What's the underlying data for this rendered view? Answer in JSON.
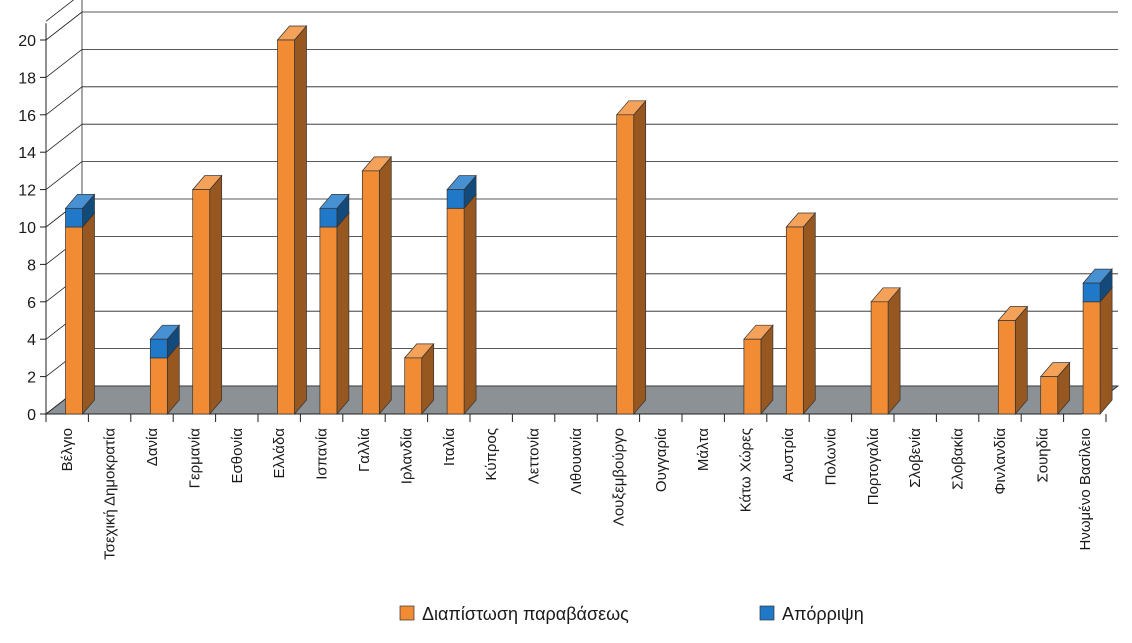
{
  "chart_data": {
    "type": "bar",
    "stacked": true,
    "three_d": true,
    "categories": [
      "Βέλγιο",
      "Τσεχική Δημοκρατία",
      "Δανία",
      "Γερμανία",
      "Εσθονία",
      "Ελλάδα",
      "Ισπανία",
      "Γαλλία",
      "Ιρλανδία",
      "Ιταλία",
      "Κύπρος",
      "Λεττονία",
      "Λιθουανία",
      "Λουξεμβούργο",
      "Ουγγαρία",
      "Μάλτα",
      "Κάτω Χώρες",
      "Αυστρία",
      "Πολωνία",
      "Πορτογαλία",
      "Σλοβενία",
      "Σλοβακία",
      "Φινλανδία",
      "Σουηδία",
      "Ηνωμένο Βασίλειο"
    ],
    "series": [
      {
        "name": "Διαπίστωση παραβάσεως",
        "color": "#f28c34",
        "values": [
          10,
          0,
          3,
          12,
          0,
          20,
          10,
          13,
          3,
          11,
          0,
          0,
          0,
          16,
          0,
          0,
          4,
          10,
          0,
          6,
          0,
          0,
          5,
          2,
          6
        ]
      },
      {
        "name": "Απόρριψη",
        "color": "#1f78c8",
        "values": [
          1,
          0,
          1,
          0,
          0,
          0,
          1,
          0,
          0,
          1,
          0,
          0,
          0,
          0,
          0,
          0,
          0,
          0,
          0,
          0,
          0,
          0,
          0,
          0,
          1
        ]
      }
    ],
    "yticks": [
      0,
      2,
      4,
      6,
      8,
      10,
      12,
      14,
      16,
      18,
      20
    ],
    "ylim": [
      0,
      20
    ],
    "grid": true,
    "legend": "bottom",
    "floor_color": "#8c9196"
  }
}
